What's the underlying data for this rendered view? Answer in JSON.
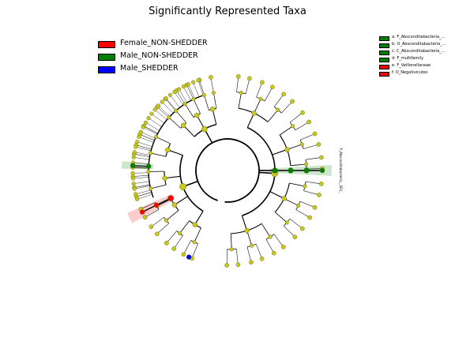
{
  "title": "Significantly Represented Taxa",
  "colors": {
    "Female_NON-SHEDDER": "#ff0000",
    "Male_NON-SHEDDER": "#008000",
    "Male_SHEDDER": "#0000ff",
    "neutral_node": "#c8c81e"
  },
  "legend": [
    {
      "label": "Female_NON-SHEDDER",
      "color": "#ff0000"
    },
    {
      "label": "Male_NON-SHEDDER",
      "color": "#008000"
    },
    {
      "label": "Male_SHEDDER",
      "color": "#0000ff"
    }
  ],
  "biomarker_key": [
    {
      "letter": "a",
      "label": "a: F_Absconditabacteria_...",
      "color": "#008000"
    },
    {
      "letter": "b",
      "label": "b: O_Absconditabacteria_...",
      "color": "#008000"
    },
    {
      "letter": "c",
      "label": "c: C_Absconditabacteria_...",
      "color": "#008000"
    },
    {
      "letter": "d",
      "label": "d: F_multifamily",
      "color": "#008000"
    },
    {
      "letter": "e",
      "label": "e: F_Veillonellaceae",
      "color": "#ff0000"
    },
    {
      "letter": "f",
      "label": "f: O_Negativicutes",
      "color": "#ff0000"
    }
  ],
  "clade_label_right": "P_Absconditabacteria__SR1_",
  "chart_data": {
    "type": "cladogram",
    "title": "Significantly Represented Taxa",
    "legend_position": "top-left",
    "classes": [
      "Female_NON-SHEDDER",
      "Male_NON-SHEDDER",
      "Male_SHEDDER"
    ],
    "highlighted_clades": [
      {
        "letter": "a",
        "name": "F_Absconditabacteria_...",
        "class": "Male_NON-SHEDDER"
      },
      {
        "letter": "b",
        "name": "O_Absconditabacteria_...",
        "class": "Male_NON-SHEDDER"
      },
      {
        "letter": "c",
        "name": "C_Absconditabacteria_...",
        "class": "Male_NON-SHEDDER"
      },
      {
        "letter": "d",
        "name": "F_multifamily",
        "class": "Male_NON-SHEDDER"
      },
      {
        "letter": "e",
        "name": "F_Veillonellaceae",
        "class": "Female_NON-SHEDDER"
      },
      {
        "letter": "f",
        "name": "O_Negativicutes",
        "class": "Female_NON-SHEDDER"
      },
      {
        "letter": "",
        "name": "P_Absconditabacteria__SR1_",
        "class": "Male_NON-SHEDDER"
      }
    ]
  }
}
